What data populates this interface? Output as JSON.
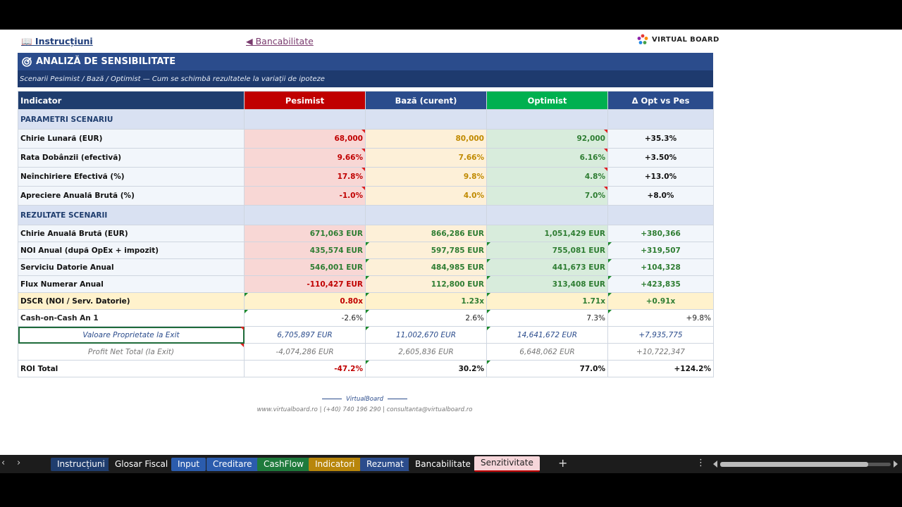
{
  "top_links": {
    "instructiuni": "📖 Instrucțiuni",
    "bancabilitate": "◀ Bancabilitate"
  },
  "logo": {
    "text": "VIRTUAL BOARD"
  },
  "title": "ANALIZĂ DE SENSIBILITATE",
  "subtitle": "Scenarii Pesimist / Bază / Optimist — Cum se schimbă rezultatele la variații de ipoteze",
  "headers": {
    "indicator": "Indicator",
    "pesimist": "Pesimist",
    "baza": "Bază (curent)",
    "optimist": "Optimist",
    "delta": "Δ Opt vs Pes"
  },
  "sections": {
    "parametri": "PARAMETRI SCENARIU",
    "rezultate": "REZULTATE SCENARII"
  },
  "parametri": [
    {
      "label": "Chirie Lunară (EUR)",
      "pes": "68,000",
      "baz": "80,000",
      "opt": "92,000",
      "delta": "+35.3%"
    },
    {
      "label": "Rata Dobânzii (efectivă)",
      "pes": "9.66%",
      "baz": "7.66%",
      "opt": "6.16%",
      "delta": "+3.50%"
    },
    {
      "label": "Neînchiriere Efectivă (%)",
      "pes": "17.8%",
      "baz": "9.8%",
      "opt": "4.8%",
      "delta": "+13.0%"
    },
    {
      "label": "Apreciere Anuală Brută (%)",
      "pes": "-1.0%",
      "baz": "4.0%",
      "opt": "7.0%",
      "delta": "+8.0%"
    }
  ],
  "rezultate": [
    {
      "label": "Chirie Anuală Brută (EUR)",
      "pes": "671,063 EUR",
      "baz": "866,286 EUR",
      "opt": "1,051,429 EUR",
      "delta": "+380,366"
    },
    {
      "label": "NOI Anual (după OpEx + impozit)",
      "pes": "435,574 EUR",
      "baz": "597,785 EUR",
      "opt": "755,081 EUR",
      "delta": "+319,507"
    },
    {
      "label": "Serviciu Datorie Anual",
      "pes": "546,001 EUR",
      "baz": "484,985 EUR",
      "opt": "441,673 EUR",
      "delta": "+104,328"
    },
    {
      "label": "Flux Numerar Anual",
      "pes": "-110,427 EUR",
      "baz": "112,800 EUR",
      "opt": "313,408 EUR",
      "delta": "+423,835"
    }
  ],
  "dscr": {
    "label": "DSCR (NOI / Serv. Datorie)",
    "pes": "0.80x",
    "baz": "1.23x",
    "opt": "1.71x",
    "delta": "+0.91x"
  },
  "coc": {
    "label": "Cash-on-Cash An 1",
    "pes": "-2.6%",
    "baz": "2.6%",
    "opt": "7.3%",
    "delta": "+9.8%"
  },
  "valoare": {
    "label": "Valoare Proprietate la Exit",
    "pes": "6,705,897 EUR",
    "baz": "11,002,670 EUR",
    "opt": "14,641,672 EUR",
    "delta": "+7,935,775"
  },
  "profit": {
    "label": "Profit Net Total (la Exit)",
    "pes": "-4,074,286 EUR",
    "baz": "2,605,836 EUR",
    "opt": "6,648,062 EUR",
    "delta": "+10,722,347"
  },
  "roi": {
    "label": "ROI Total",
    "pes": "-47.2%",
    "baz": "30.2%",
    "opt": "77.0%",
    "delta": "+124.2%"
  },
  "footer": {
    "brand": "VirtualBoard",
    "contact": "www.virtualboard.ro  |  (+40) 740 196 290  |  consultanta@virtualboard.ro"
  },
  "tabs": [
    {
      "label": "Instrucțiuni",
      "color": "#1f3d6e"
    },
    {
      "label": "Glosar Fiscal",
      "color": "#1c1c1c"
    },
    {
      "label": "Input",
      "color": "#2b5cad"
    },
    {
      "label": "Creditare",
      "color": "#2b5cad"
    },
    {
      "label": "CashFlow",
      "color": "#1e7a3c"
    },
    {
      "label": "Indicatori",
      "color": "#b8860b"
    },
    {
      "label": "Rezumat",
      "color": "#2b4c8c"
    },
    {
      "label": "Bancabilitate",
      "color": "#1c1c1c"
    },
    {
      "label": "Senzitivitate",
      "color": "#f6d6da"
    }
  ]
}
